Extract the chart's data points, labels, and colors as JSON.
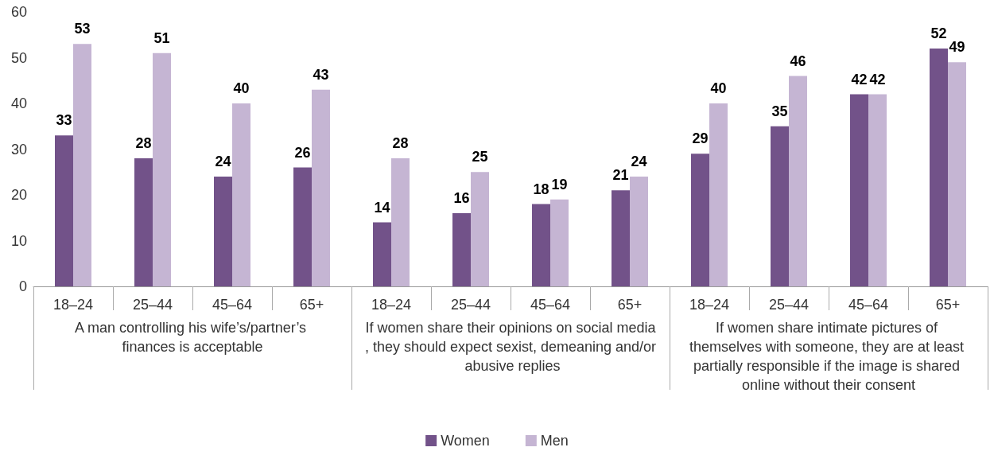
{
  "chart_data": {
    "type": "bar",
    "categories": [
      "18–24",
      "25–44",
      "45–64",
      "65+",
      "18–24",
      "25–44",
      "45–64",
      "65+",
      "18–24",
      "25–44",
      "45–64",
      "65+"
    ],
    "series": [
      {
        "name": "Women",
        "color": "#725289",
        "values": [
          33,
          28,
          24,
          26,
          14,
          16,
          18,
          21,
          29,
          35,
          42,
          52
        ]
      },
      {
        "name": "Men",
        "color": "#c5b5d3",
        "values": [
          53,
          51,
          40,
          43,
          28,
          25,
          19,
          24,
          40,
          46,
          42,
          49
        ]
      }
    ],
    "annotations": [
      "A man controlling his wife’s/partner’s finances is acceptable",
      "If women share their opinions on social media, they should expect sexist, demeaning and/or abusive replies",
      "If women share intimate pictures of themselves with someone, they are at least partially responsible if the image is shared online without their consent"
    ],
    "ylim": [
      0,
      60
    ],
    "yticks": [
      0,
      10,
      20,
      30,
      40,
      50,
      60
    ],
    "data_labels": true,
    "legend": "bottom"
  }
}
